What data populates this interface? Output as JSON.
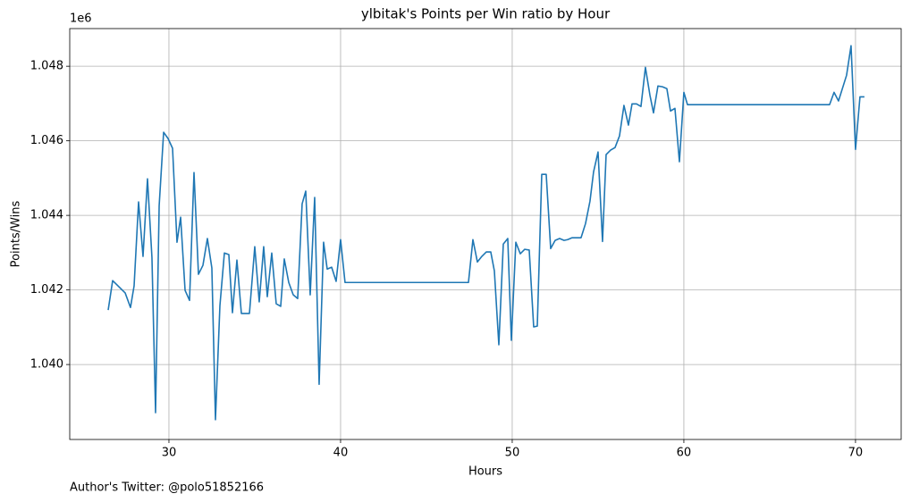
{
  "chart_data": {
    "type": "line",
    "title": "ylbitak's Points per Win ratio by Hour",
    "xlabel": "Hours",
    "ylabel": "Points/Wins",
    "y_offset_label": "1e6",
    "footnote": "Author's Twitter: @polo51852166",
    "color": "#1f77b4",
    "grid": true,
    "xlim": [
      24.22,
      72.66
    ],
    "ylim": [
      1.03799,
      1.04901
    ],
    "xticks": [
      30,
      40,
      50,
      60,
      70
    ],
    "yticks": [
      {
        "value": 1.04,
        "label": "1.040"
      },
      {
        "value": 1.042,
        "label": "1.042"
      },
      {
        "value": 1.044,
        "label": "1.044"
      },
      {
        "value": 1.046,
        "label": "1.046"
      },
      {
        "value": 1.048,
        "label": "1.048"
      }
    ],
    "x": [
      26.46,
      26.72,
      27.45,
      27.76,
      27.97,
      28.23,
      28.49,
      28.75,
      29.01,
      29.22,
      29.43,
      29.69,
      29.95,
      30.21,
      30.47,
      30.68,
      30.94,
      31.2,
      31.46,
      31.72,
      31.98,
      32.24,
      32.5,
      32.71,
      32.97,
      33.23,
      33.49,
      33.7,
      33.96,
      34.22,
      34.69,
      35.0,
      35.26,
      35.52,
      35.73,
      35.99,
      36.25,
      36.51,
      36.72,
      36.98,
      37.24,
      37.5,
      37.76,
      37.97,
      38.23,
      38.49,
      38.75,
      39.01,
      39.22,
      39.48,
      39.74,
      40.0,
      40.26,
      47.45,
      47.71,
      47.97,
      48.23,
      48.49,
      48.75,
      48.96,
      49.22,
      49.48,
      49.74,
      49.95,
      50.21,
      50.47,
      50.73,
      50.99,
      51.25,
      51.46,
      51.72,
      51.98,
      52.24,
      52.5,
      52.76,
      53.02,
      53.23,
      53.49,
      53.75,
      54.01,
      54.27,
      54.53,
      54.74,
      55.0,
      55.26,
      55.47,
      55.73,
      55.99,
      56.25,
      56.51,
      56.77,
      56.98,
      57.24,
      57.5,
      57.76,
      58.02,
      58.23,
      58.49,
      58.75,
      59.01,
      59.22,
      59.48,
      59.74,
      60.0,
      60.21,
      68.49,
      68.75,
      69.01,
      69.48,
      69.74,
      70.0,
      70.26,
      70.52
    ],
    "values": [
      1.04146,
      1.04225,
      1.04192,
      1.04153,
      1.04211,
      1.04436,
      1.0429,
      1.04498,
      1.04287,
      1.03871,
      1.04426,
      1.04623,
      1.04606,
      1.0458,
      1.04328,
      1.04395,
      1.04199,
      1.04172,
      1.04515,
      1.04242,
      1.04266,
      1.04338,
      1.04259,
      1.03852,
      1.04158,
      1.04299,
      1.04295,
      1.04139,
      1.0428,
      1.04137,
      1.04137,
      1.04316,
      1.04168,
      1.04316,
      1.04182,
      1.04299,
      1.04163,
      1.04156,
      1.04283,
      1.0422,
      1.04187,
      1.04177,
      1.04431,
      1.04465,
      1.04187,
      1.04448,
      1.03947,
      1.04328,
      1.04256,
      1.04261,
      1.04223,
      1.04335,
      1.0422,
      1.0422,
      1.04335,
      1.04275,
      1.0429,
      1.04302,
      1.04302,
      1.04251,
      1.04053,
      1.04323,
      1.04338,
      1.04065,
      1.04328,
      1.04297,
      1.04309,
      1.04307,
      1.04101,
      1.04103,
      1.0451,
      1.0451,
      1.04311,
      1.04333,
      1.04338,
      1.04333,
      1.04335,
      1.0434,
      1.0434,
      1.0434,
      1.04378,
      1.04438,
      1.04517,
      1.0457,
      1.0433,
      1.04563,
      1.04575,
      1.04582,
      1.04613,
      1.04695,
      1.04642,
      1.04699,
      1.04699,
      1.04692,
      1.04797,
      1.04723,
      1.04675,
      1.04747,
      1.04745,
      1.0474,
      1.0468,
      1.04687,
      1.04544,
      1.0473,
      1.04697,
      1.04697,
      1.0473,
      1.04707,
      1.04776,
      1.04855,
      1.04577,
      1.04718,
      1.04718
    ]
  }
}
